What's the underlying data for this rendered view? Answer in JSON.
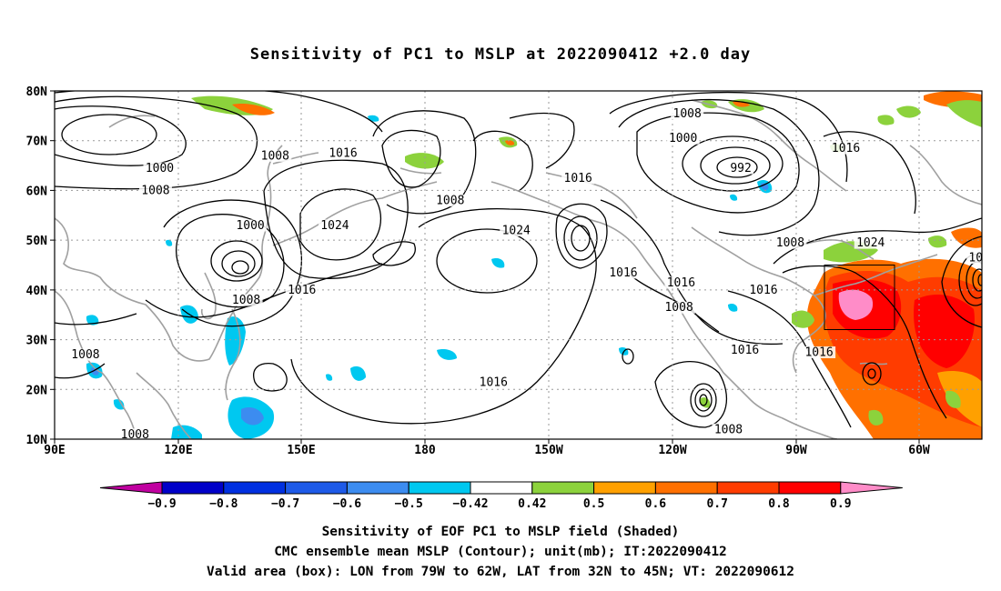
{
  "title": "Sensitivity of PC1 to MSLP at 2022090412 +2.0 day",
  "map": {
    "lon_labels": [
      "90E",
      "120E",
      "150E",
      "180",
      "150W",
      "120W",
      "90W",
      "60W"
    ],
    "lat_labels": [
      "80N",
      "70N",
      "60N",
      "50N",
      "40N",
      "30N",
      "20N",
      "10N"
    ],
    "contour_labels": [
      {
        "text": "1000",
        "lon": 115.5,
        "lat": 64.0
      },
      {
        "text": "1008",
        "lon": 114.5,
        "lat": 59.5
      },
      {
        "text": "1008",
        "lon": 143.5,
        "lat": 66.5
      },
      {
        "text": "1016",
        "lon": 160.0,
        "lat": 67.0
      },
      {
        "text": "1000",
        "lon": 137.5,
        "lat": 52.5
      },
      {
        "text": "1024",
        "lon": 158.0,
        "lat": 52.5
      },
      {
        "text": "1008",
        "lon": 136.5,
        "lat": 37.5
      },
      {
        "text": "1016",
        "lon": 150.0,
        "lat": 39.5
      },
      {
        "text": "1008",
        "lon": 97.5,
        "lat": 26.5
      },
      {
        "text": "1008",
        "lon": 109.5,
        "lat": 10.5
      },
      {
        "text": "1008",
        "lon": 186.0,
        "lat": 57.5
      },
      {
        "text": "1024",
        "lon": 202.0,
        "lat": 51.5
      },
      {
        "text": "1016",
        "lon": 217.0,
        "lat": 62.0
      },
      {
        "text": "1016",
        "lon": 228.0,
        "lat": 43.0
      },
      {
        "text": "1016",
        "lon": 242.0,
        "lat": 41.0
      },
      {
        "text": "1016",
        "lon": 262.0,
        "lat": 39.5
      },
      {
        "text": "1008",
        "lon": 241.5,
        "lat": 36.0
      },
      {
        "text": "1016",
        "lon": 257.5,
        "lat": 27.5
      },
      {
        "text": "1016",
        "lon": 196.5,
        "lat": 21.0
      },
      {
        "text": "1008",
        "lon": 253.5,
        "lat": 11.5
      },
      {
        "text": "1008",
        "lon": 243.5,
        "lat": 75.0
      },
      {
        "text": "1000",
        "lon": 242.5,
        "lat": 70.0
      },
      {
        "text": "992",
        "lon": 256.5,
        "lat": 64.0
      },
      {
        "text": "1008",
        "lon": 268.5,
        "lat": 49.0
      },
      {
        "text": "1016",
        "lon": 282.0,
        "lat": 68.0
      },
      {
        "text": "1024",
        "lon": 288.0,
        "lat": 49.0
      },
      {
        "text": "1016",
        "lon": 275.5,
        "lat": 27.0
      },
      {
        "text": "10",
        "lon": 313.5,
        "lat": 46.0
      }
    ]
  },
  "colorbar": {
    "labels": [
      "−0.9",
      "−0.8",
      "−0.7",
      "−0.6",
      "−0.5",
      "−0.42",
      "0.42",
      "0.5",
      "0.6",
      "0.7",
      "0.8",
      "0.9"
    ],
    "colors": [
      "#c000a0",
      "#0000c8",
      "#0030e0",
      "#1e5ae8",
      "#3c8cf0",
      "#00c8f0",
      "#ffffff",
      "#8cd23c",
      "#ffa000",
      "#ff7000",
      "#ff3c00",
      "#ff0000",
      "#ff8cc8"
    ]
  },
  "caption": [
    "Sensitivity of EOF PC1 to MSLP field (Shaded)",
    "CMC ensemble mean MSLP (Contour); unit(mb); IT:2022090412",
    "Valid area (box): LON from 79W to 62W, LAT from 32N to 45N; VT: 2022090612"
  ]
}
